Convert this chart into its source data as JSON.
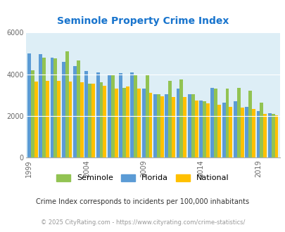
{
  "title": "Seminole Property Crime Index",
  "title_color": "#1874cd",
  "years": [
    1999,
    2000,
    2001,
    2002,
    2003,
    2004,
    2005,
    2006,
    2007,
    2008,
    2009,
    2010,
    2011,
    2012,
    2013,
    2014,
    2015,
    2016,
    2017,
    2018,
    2019,
    2020
  ],
  "florida": [
    5000,
    4950,
    4800,
    4600,
    4400,
    4150,
    4100,
    4000,
    4050,
    4100,
    3300,
    3050,
    3050,
    3300,
    3050,
    2750,
    3350,
    2650,
    2700,
    2450,
    2250,
    2150
  ],
  "seminole": [
    4200,
    4800,
    4750,
    5100,
    4650,
    3550,
    3600,
    4000,
    3350,
    3950,
    3950,
    3050,
    3700,
    3750,
    3050,
    2700,
    3300,
    3300,
    3350,
    3200,
    2650,
    2100
  ],
  "national": [
    3650,
    3700,
    3700,
    3650,
    3600,
    3550,
    3450,
    3300,
    3400,
    3300,
    3100,
    2950,
    2900,
    2900,
    2750,
    2600,
    2550,
    2450,
    2400,
    2350,
    2100,
    2050
  ],
  "florida_color": "#5b9bd5",
  "seminole_color": "#92c352",
  "national_color": "#ffc000",
  "bg_color": "#ddeef6",
  "ylim": [
    0,
    6000
  ],
  "yticks": [
    0,
    2000,
    4000,
    6000
  ],
  "xtick_years": [
    1999,
    2004,
    2009,
    2014,
    2019
  ],
  "footnote": "Crime Index corresponds to incidents per 100,000 inhabitants",
  "copyright": "© 2025 CityRating.com - https://www.cityrating.com/crime-statistics/",
  "legend_labels": [
    "Seminole",
    "Florida",
    "National"
  ]
}
